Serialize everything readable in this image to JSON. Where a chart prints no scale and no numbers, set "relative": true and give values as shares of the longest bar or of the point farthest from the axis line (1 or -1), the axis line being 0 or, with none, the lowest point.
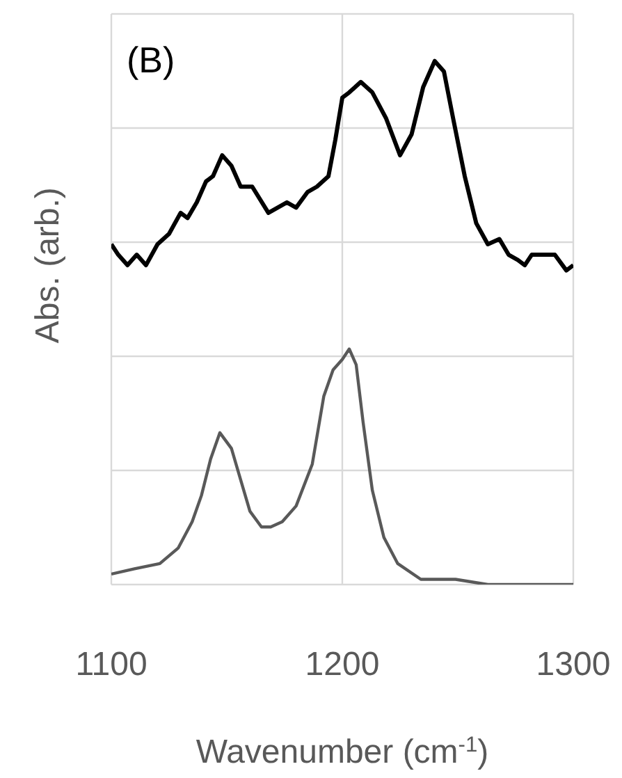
{
  "chart_data": {
    "type": "line",
    "relative": true,
    "xlabel": "Wavenumber (cm$^{-1}$)",
    "ylabel": "Abs. (arb.)",
    "annotations": [
      "(B)"
    ],
    "xlim": [
      1100,
      1300
    ],
    "xticks": [
      1100,
      1200,
      1300
    ],
    "grid": true,
    "line_style": "solid",
    "series": [
      {
        "color": "#000000",
        "x": [
          1100,
          1103,
          1107,
          1111,
          1115,
          1120,
          1125,
          1130,
          1133,
          1137,
          1141,
          1144,
          1148,
          1152,
          1156,
          1161,
          1168,
          1172,
          1176,
          1180,
          1185,
          1189,
          1194,
          1197,
          1200,
          1203,
          1208,
          1213,
          1219,
          1225,
          1230,
          1235,
          1240,
          1244,
          1248,
          1253,
          1258,
          1263,
          1268,
          1272,
          1276,
          1279,
          1282,
          1288,
          1292,
          1297,
          1300
        ],
        "values": [
          0.65,
          0.63,
          0.61,
          0.63,
          0.61,
          0.65,
          0.67,
          0.71,
          0.7,
          0.73,
          0.77,
          0.78,
          0.82,
          0.8,
          0.76,
          0.76,
          0.71,
          0.72,
          0.73,
          0.72,
          0.75,
          0.76,
          0.78,
          0.85,
          0.93,
          0.94,
          0.96,
          0.94,
          0.89,
          0.82,
          0.86,
          0.95,
          1.0,
          0.98,
          0.89,
          0.78,
          0.69,
          0.65,
          0.66,
          0.63,
          0.62,
          0.61,
          0.63,
          0.63,
          0.63,
          0.6,
          0.61
        ]
      },
      {
        "color": "#595959",
        "x": [
          1100,
          1110,
          1121,
          1129,
          1135,
          1139,
          1143,
          1147,
          1152,
          1156,
          1160,
          1165,
          1169,
          1174,
          1180,
          1187,
          1192,
          1196,
          1200,
          1203,
          1206,
          1209,
          1213,
          1218,
          1224,
          1234,
          1249,
          1263,
          1279,
          1300
        ],
        "values": [
          0.02,
          0.03,
          0.04,
          0.07,
          0.12,
          0.17,
          0.24,
          0.29,
          0.26,
          0.2,
          0.14,
          0.11,
          0.11,
          0.12,
          0.15,
          0.23,
          0.36,
          0.41,
          0.43,
          0.45,
          0.42,
          0.31,
          0.18,
          0.09,
          0.04,
          0.01,
          0.01,
          0,
          0,
          0
        ]
      }
    ]
  }
}
